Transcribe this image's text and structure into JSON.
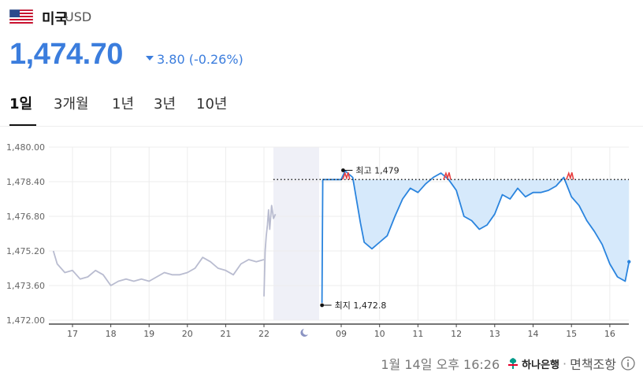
{
  "header": {
    "country": "미국",
    "currency": "USD",
    "price": "1,474.70",
    "change": "3.80 (-0.26%)"
  },
  "tabs": [
    {
      "label": "1일",
      "active": true
    },
    {
      "label": "3개월",
      "active": false
    },
    {
      "label": "1년",
      "active": false
    },
    {
      "label": "3년",
      "active": false
    },
    {
      "label": "10년",
      "active": false
    }
  ],
  "chart_data": {
    "type": "line",
    "y_ticks": [
      "1,480.00",
      "1,478.40",
      "1,476.80",
      "1,475.20",
      "1,473.60",
      "1,472.00"
    ],
    "ylim": [
      1472.0,
      1480.0
    ],
    "x_ticks": [
      "17",
      "18",
      "19",
      "20",
      "21",
      "22",
      "09",
      "10",
      "11",
      "12",
      "13",
      "14",
      "15",
      "16"
    ],
    "night_icon": "moon-icon",
    "annotations": {
      "high_label": "최고 1,479",
      "high_value": 1479.0,
      "low_label": "최지 1,472.8",
      "low_value": 1472.8,
      "reference_value": 1478.5
    },
    "series": [
      {
        "session": "previous",
        "color": "#b9bcd0",
        "x": [
          16.5,
          16.6,
          16.8,
          17.0,
          17.2,
          17.4,
          17.6,
          17.8,
          18.0,
          18.2,
          18.4,
          18.6,
          18.8,
          19.0,
          19.2,
          19.4,
          19.6,
          19.8,
          20.0,
          20.2,
          20.4,
          20.6,
          20.8,
          21.0,
          21.2,
          21.4,
          21.6,
          21.8,
          22.0
        ],
        "values": [
          1475.2,
          1474.6,
          1474.2,
          1474.3,
          1473.9,
          1474.0,
          1474.3,
          1474.1,
          1473.6,
          1473.8,
          1473.9,
          1473.8,
          1473.9,
          1473.8,
          1474.0,
          1474.2,
          1474.1,
          1474.1,
          1474.2,
          1474.4,
          1474.9,
          1474.7,
          1474.4,
          1474.3,
          1474.1,
          1474.6,
          1474.8,
          1474.7,
          1474.8
        ]
      },
      {
        "session": "previous-spike",
        "color": "#b9bcd0",
        "x": [
          22.0,
          22.03,
          22.06,
          22.09,
          22.12,
          22.15,
          22.2,
          22.25,
          22.3
        ],
        "values": [
          1473.1,
          1475.2,
          1475.9,
          1476.4,
          1477.1,
          1476.2,
          1477.3,
          1476.7,
          1476.9
        ]
      },
      {
        "session": "current",
        "color": "#2a84de",
        "x": [
          8.5,
          8.52,
          9.0,
          9.1,
          9.3,
          9.5,
          9.6,
          9.8,
          10.0,
          10.2,
          10.4,
          10.6,
          10.8,
          11.0,
          11.2,
          11.4,
          11.6,
          11.8,
          12.0,
          12.2,
          12.4,
          12.6,
          12.8,
          13.0,
          13.2,
          13.4,
          13.6,
          13.8,
          14.0,
          14.2,
          14.4,
          14.6,
          14.8,
          15.0,
          15.2,
          15.4,
          15.6,
          15.8,
          16.0,
          16.2,
          16.4,
          16.5
        ],
        "values": [
          1472.8,
          1478.5,
          1478.5,
          1478.9,
          1478.6,
          1476.5,
          1475.6,
          1475.3,
          1475.6,
          1475.9,
          1476.8,
          1477.6,
          1478.1,
          1477.9,
          1478.3,
          1478.6,
          1478.8,
          1478.5,
          1478.0,
          1476.8,
          1476.6,
          1476.2,
          1476.4,
          1476.9,
          1477.8,
          1477.6,
          1478.1,
          1477.7,
          1477.9,
          1477.9,
          1478.0,
          1478.2,
          1478.6,
          1477.7,
          1477.3,
          1476.6,
          1476.1,
          1475.5,
          1474.6,
          1474.0,
          1473.8,
          1474.7
        ]
      }
    ]
  },
  "footer": {
    "timestamp": "1월 14일 오후 16:26",
    "bank": "하나은행",
    "disclaimer": "면책조항"
  },
  "colors": {
    "accent": "#3b7ddd",
    "line_current": "#2a84de",
    "line_previous": "#b9bcd0",
    "fill": "#d6e9fb",
    "high_marker": "#e84040",
    "night_band": "#eff0f7"
  }
}
